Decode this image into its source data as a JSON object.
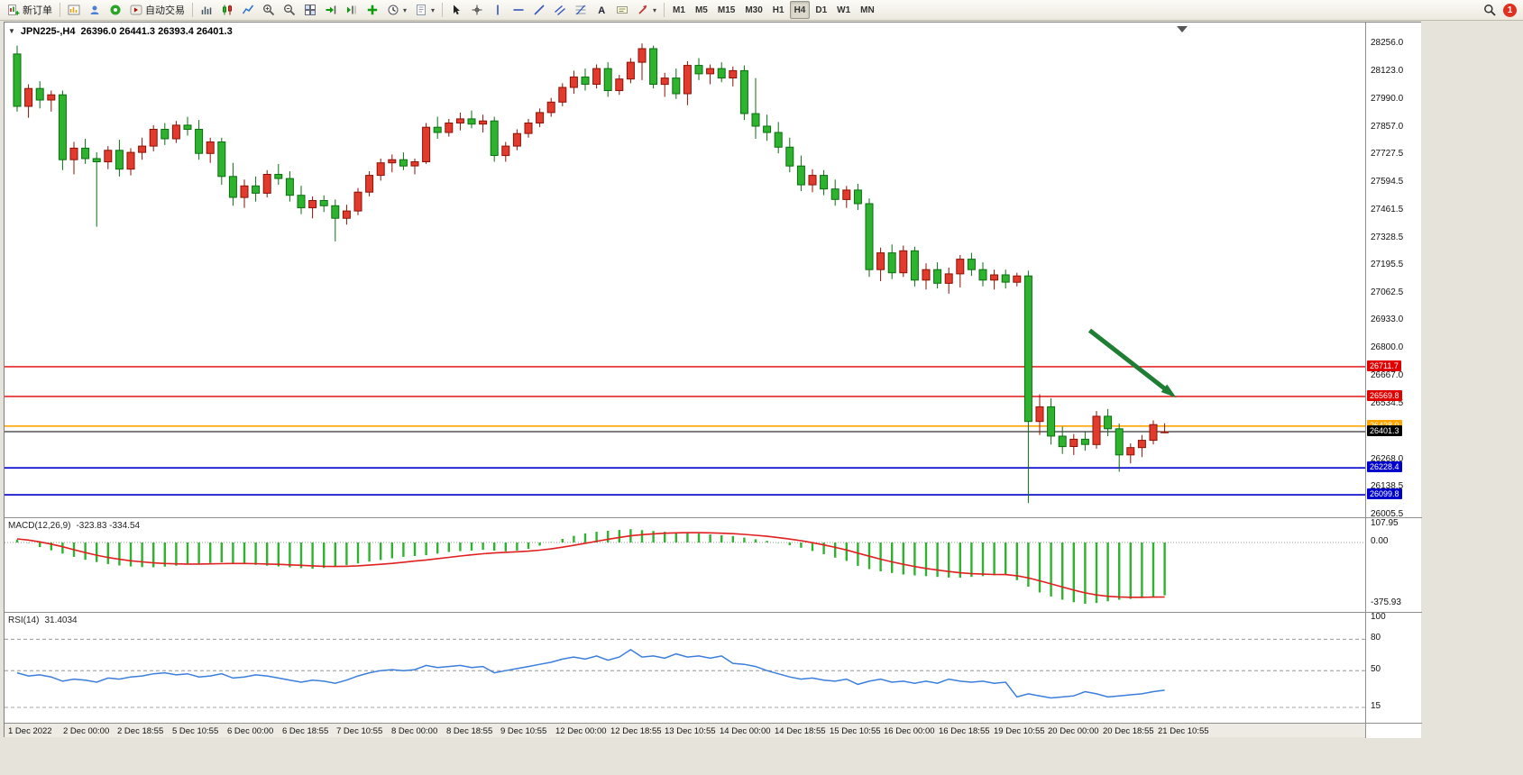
{
  "toolbar": {
    "new_order_label": "新订单",
    "autotrading_label": "自动交易",
    "timeframes": [
      "M1",
      "M5",
      "M15",
      "M30",
      "H1",
      "H4",
      "D1",
      "W1",
      "MN"
    ],
    "active_timeframe": "H4",
    "notification_count": "1"
  },
  "chart_data": [
    {
      "type": "candlestick",
      "title": "JPN225-,H4",
      "ohlc_text": "26396.0 26441.3 26393.4 26401.3",
      "current": {
        "open": 26396.0,
        "high": 26441.3,
        "low": 26393.4,
        "close": 26401.3
      },
      "y_ticks": [
        28256.0,
        28123.0,
        27990.0,
        27857.0,
        27727.5,
        27594.5,
        27461.5,
        27328.5,
        27195.5,
        27062.5,
        26933.0,
        26800.0,
        26667.0,
        26534.5,
        26268.0,
        26138.5,
        26005.5
      ],
      "x_labels": [
        "1 Dec 2022",
        "2 Dec 00:00",
        "2 Dec 18:55",
        "5 Dec 10:55",
        "6 Dec 00:00",
        "6 Dec 18:55",
        "7 Dec 10:55",
        "8 Dec 00:00",
        "8 Dec 18:55",
        "9 Dec 10:55",
        "12 Dec 00:00",
        "12 Dec 18:55",
        "13 Dec 10:55",
        "14 Dec 00:00",
        "14 Dec 18:55",
        "15 Dec 10:55",
        "16 Dec 00:00",
        "16 Dec 18:55",
        "19 Dec 10:55",
        "20 Dec 00:00",
        "20 Dec 18:55",
        "21 Dec 10:55"
      ],
      "colors": {
        "up_fill": "#E23B2E",
        "up_stroke": "#8B1204",
        "down_fill": "#2DB32D",
        "down_stroke": "#0B6E11"
      },
      "hlines": [
        {
          "price": 26711.7,
          "color": "#E00000",
          "width": 1.4,
          "badge": true
        },
        {
          "price": 26569.8,
          "color": "#E00000",
          "width": 1.4,
          "badge": true
        },
        {
          "price": 26428.0,
          "color": "#FFA500",
          "width": 1.6,
          "badge": true
        },
        {
          "price": 26401.3,
          "color": "#000000",
          "width": 1.0,
          "badge": true,
          "is_current": true
        },
        {
          "price": 26228.4,
          "color": "#0000CC",
          "width": 1.6,
          "badge": true
        },
        {
          "price": 26099.8,
          "color": "#0000CC",
          "width": 1.6,
          "badge": true
        }
      ],
      "arrow": {
        "from_bar": 94.4,
        "from_price": 26885,
        "to_bar": 101.4,
        "to_price": 26590,
        "color": "#1E7E34"
      },
      "candles": [
        [
          28205,
          28245,
          27930,
          27955
        ],
        [
          27955,
          28060,
          27900,
          28040
        ],
        [
          28040,
          28075,
          27945,
          27985
        ],
        [
          27985,
          28030,
          27930,
          28010
        ],
        [
          28010,
          28030,
          27650,
          27700
        ],
        [
          27700,
          27785,
          27630,
          27755
        ],
        [
          27755,
          27800,
          27680,
          27705
        ],
        [
          27705,
          27735,
          27380,
          27690
        ],
        [
          27690,
          27765,
          27655,
          27745
        ],
        [
          27745,
          27795,
          27620,
          27655
        ],
        [
          27655,
          27755,
          27625,
          27735
        ],
        [
          27735,
          27805,
          27700,
          27765
        ],
        [
          27765,
          27865,
          27740,
          27845
        ],
        [
          27845,
          27875,
          27770,
          27800
        ],
        [
          27800,
          27885,
          27780,
          27865
        ],
        [
          27865,
          27905,
          27815,
          27845
        ],
        [
          27845,
          27890,
          27700,
          27730
        ],
        [
          27730,
          27805,
          27685,
          27785
        ],
        [
          27785,
          27805,
          27580,
          27620
        ],
        [
          27620,
          27685,
          27480,
          27520
        ],
        [
          27520,
          27605,
          27470,
          27575
        ],
        [
          27575,
          27620,
          27500,
          27540
        ],
        [
          27540,
          27650,
          27520,
          27630
        ],
        [
          27630,
          27680,
          27580,
          27610
        ],
        [
          27610,
          27645,
          27500,
          27530
        ],
        [
          27530,
          27575,
          27440,
          27470
        ],
        [
          27470,
          27525,
          27420,
          27505
        ],
        [
          27505,
          27530,
          27450,
          27480
        ],
        [
          27480,
          27510,
          27310,
          27420
        ],
        [
          27420,
          27485,
          27390,
          27455
        ],
        [
          27455,
          27565,
          27435,
          27545
        ],
        [
          27545,
          27645,
          27525,
          27625
        ],
        [
          27625,
          27705,
          27600,
          27685
        ],
        [
          27685,
          27725,
          27640,
          27700
        ],
        [
          27700,
          27735,
          27650,
          27670
        ],
        [
          27670,
          27705,
          27630,
          27690
        ],
        [
          27690,
          27875,
          27680,
          27855
        ],
        [
          27855,
          27905,
          27800,
          27830
        ],
        [
          27830,
          27895,
          27810,
          27875
        ],
        [
          27875,
          27925,
          27840,
          27895
        ],
        [
          27895,
          27935,
          27850,
          27870
        ],
        [
          27870,
          27915,
          27830,
          27885
        ],
        [
          27885,
          27905,
          27690,
          27720
        ],
        [
          27720,
          27785,
          27690,
          27765
        ],
        [
          27765,
          27845,
          27745,
          27825
        ],
        [
          27825,
          27895,
          27805,
          27875
        ],
        [
          27875,
          27945,
          27855,
          27925
        ],
        [
          27925,
          27995,
          27905,
          27975
        ],
        [
          27975,
          28065,
          27955,
          28045
        ],
        [
          28045,
          28125,
          28015,
          28095
        ],
        [
          28095,
          28135,
          28030,
          28060
        ],
        [
          28060,
          28155,
          28040,
          28135
        ],
        [
          28135,
          28165,
          28000,
          28030
        ],
        [
          28030,
          28105,
          28010,
          28085
        ],
        [
          28085,
          28185,
          28065,
          28165
        ],
        [
          28165,
          28255,
          28080,
          28230
        ],
        [
          28230,
          28245,
          28040,
          28060
        ],
        [
          28060,
          28115,
          28000,
          28090
        ],
        [
          28090,
          28135,
          27990,
          28015
        ],
        [
          28015,
          28170,
          27960,
          28150
        ],
        [
          28150,
          28185,
          28080,
          28110
        ],
        [
          28110,
          28155,
          28060,
          28135
        ],
        [
          28135,
          28165,
          28070,
          28090
        ],
        [
          28090,
          28145,
          28050,
          28125
        ],
        [
          28125,
          28150,
          27890,
          27920
        ],
        [
          27920,
          28090,
          27800,
          27860
        ],
        [
          27860,
          27915,
          27790,
          27830
        ],
        [
          27830,
          27880,
          27730,
          27760
        ],
        [
          27760,
          27805,
          27640,
          27670
        ],
        [
          27670,
          27720,
          27550,
          27580
        ],
        [
          27580,
          27655,
          27545,
          27625
        ],
        [
          27625,
          27650,
          27530,
          27560
        ],
        [
          27560,
          27605,
          27480,
          27510
        ],
        [
          27510,
          27575,
          27470,
          27555
        ],
        [
          27555,
          27585,
          27460,
          27490
        ],
        [
          27490,
          27515,
          27140,
          27175
        ],
        [
          27175,
          27280,
          27120,
          27255
        ],
        [
          27255,
          27295,
          27130,
          27160
        ],
        [
          27160,
          27290,
          27140,
          27265
        ],
        [
          27265,
          27285,
          27095,
          27125
        ],
        [
          27125,
          27205,
          27080,
          27175
        ],
        [
          27175,
          27210,
          27085,
          27110
        ],
        [
          27110,
          27185,
          27060,
          27155
        ],
        [
          27155,
          27245,
          27090,
          27225
        ],
        [
          27225,
          27255,
          27145,
          27175
        ],
        [
          27175,
          27210,
          27095,
          27125
        ],
        [
          27125,
          27175,
          27080,
          27150
        ],
        [
          27150,
          27175,
          27085,
          27115
        ],
        [
          27115,
          27160,
          27095,
          27145
        ],
        [
          27145,
          27170,
          26060,
          26450
        ],
        [
          26450,
          26580,
          26385,
          26520
        ],
        [
          26520,
          26560,
          26340,
          26380
        ],
        [
          26380,
          26425,
          26295,
          26330
        ],
        [
          26330,
          26390,
          26290,
          26365
        ],
        [
          26365,
          26400,
          26310,
          26340
        ],
        [
          26340,
          26500,
          26320,
          26475
        ],
        [
          26475,
          26510,
          26380,
          26415
        ],
        [
          26415,
          26440,
          26210,
          26290
        ],
        [
          26290,
          26345,
          26250,
          26325
        ],
        [
          26325,
          26385,
          26280,
          26360
        ],
        [
          26360,
          26455,
          26340,
          26435
        ],
        [
          26396,
          26441.3,
          26393.4,
          26401.3
        ]
      ]
    },
    {
      "type": "bar",
      "name": "MACD(12,26,9)",
      "values": "-323.83 -334.54",
      "y_ticks": [
        107.95,
        0,
        -375.93
      ],
      "colors": {
        "histogram": "#2DB32D",
        "signal": "#E02020"
      },
      "histogram": [
        18,
        -2,
        -28,
        -48,
        -68,
        -88,
        -106,
        -120,
        -132,
        -141,
        -147,
        -151,
        -152,
        -148,
        -142,
        -136,
        -131,
        -126,
        -122,
        -126,
        -131,
        -137,
        -142,
        -147,
        -152,
        -157,
        -161,
        -156,
        -149,
        -139,
        -128,
        -117,
        -107,
        -97,
        -88,
        -83,
        -78,
        -68,
        -58,
        -53,
        -49,
        -45,
        -50,
        -54,
        -49,
        -39,
        -19,
        2,
        22,
        41,
        56,
        66,
        72,
        77,
        82,
        76,
        71,
        66,
        61,
        58,
        55,
        50,
        45,
        40,
        30,
        20,
        10,
        -2,
        -16,
        -32,
        -52,
        -72,
        -93,
        -113,
        -143,
        -163,
        -177,
        -187,
        -196,
        -202,
        -206,
        -211,
        -215,
        -216,
        -211,
        -206,
        -201,
        -196,
        -231,
        -271,
        -306,
        -331,
        -351,
        -366,
        -376,
        -371,
        -361,
        -351,
        -346,
        -341,
        -333,
        -324
      ],
      "signal": [
        22,
        15,
        4,
        -10,
        -26,
        -44,
        -62,
        -78,
        -92,
        -103,
        -112,
        -119,
        -125,
        -129,
        -131,
        -132,
        -132,
        -131,
        -130,
        -129,
        -129,
        -130,
        -132,
        -134,
        -137,
        -140,
        -143,
        -146,
        -147,
        -146,
        -143,
        -139,
        -134,
        -128,
        -121,
        -114,
        -107,
        -99,
        -91,
        -83,
        -76,
        -69,
        -64,
        -60,
        -57,
        -53,
        -47,
        -39,
        -29,
        -17,
        -5,
        8,
        20,
        31,
        41,
        48,
        53,
        57,
        59,
        60,
        60,
        59,
        57,
        54,
        50,
        44,
        38,
        30,
        21,
        11,
        -1,
        -15,
        -30,
        -46,
        -65,
        -84,
        -102,
        -119,
        -134,
        -147,
        -159,
        -169,
        -178,
        -186,
        -191,
        -194,
        -196,
        -197,
        -204,
        -217,
        -235,
        -254,
        -273,
        -292,
        -309,
        -322,
        -330,
        -334,
        -336,
        -336,
        -335,
        -334.5
      ]
    },
    {
      "type": "line",
      "name": "RSI(14)",
      "value": "31.4034",
      "y_ticks": [
        100,
        80,
        50,
        15
      ],
      "levels": [
        80,
        50,
        15
      ],
      "color": "#3B7EDB",
      "values": [
        48,
        45,
        46,
        44,
        40,
        42,
        41,
        39,
        43,
        42,
        44,
        45,
        47,
        48,
        46,
        47,
        44,
        45,
        47,
        43,
        44,
        46,
        45,
        43,
        41,
        39,
        41,
        40,
        38,
        41,
        45,
        48,
        50,
        51,
        50,
        51,
        55,
        53,
        54,
        55,
        53,
        54,
        48,
        50,
        52,
        54,
        56,
        58,
        61,
        63,
        61,
        64,
        60,
        63,
        70,
        63,
        64,
        62,
        66,
        63,
        64,
        62,
        64,
        57,
        56,
        54,
        50,
        47,
        44,
        42,
        43,
        41,
        40,
        42,
        37,
        40,
        42,
        39,
        40,
        38,
        40,
        38,
        42,
        40,
        39,
        40,
        38,
        39,
        25,
        28,
        26,
        24,
        25,
        26,
        30,
        28,
        25,
        26,
        27,
        28,
        30,
        31.4
      ]
    }
  ]
}
